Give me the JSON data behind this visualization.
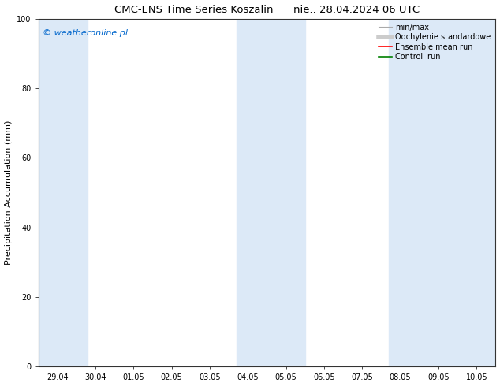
{
  "title": "CMC-ENS Time Series Koszalin      nie.. 28.04.2024 06 UTC",
  "ylabel": "Precipitation Accumulation (mm)",
  "ylim": [
    0,
    100
  ],
  "yticks": [
    0,
    20,
    40,
    60,
    80,
    100
  ],
  "x_tick_labels": [
    "29.04",
    "30.04",
    "01.05",
    "02.05",
    "03.05",
    "04.05",
    "05.05",
    "06.05",
    "07.05",
    "08.05",
    "09.05",
    "10.05"
  ],
  "watermark": "© weatheronline.pl",
  "watermark_color": "#0066cc",
  "background_color": "#ffffff",
  "shaded_color": "#dce9f7",
  "legend_minmax_color": "#aaaaaa",
  "legend_std_color": "#cccccc",
  "legend_ensemble_color": "#ff0000",
  "legend_control_color": "#008000",
  "title_fontsize": 9.5,
  "tick_fontsize": 7,
  "ylabel_fontsize": 8,
  "watermark_fontsize": 8,
  "legend_fontsize": 7
}
